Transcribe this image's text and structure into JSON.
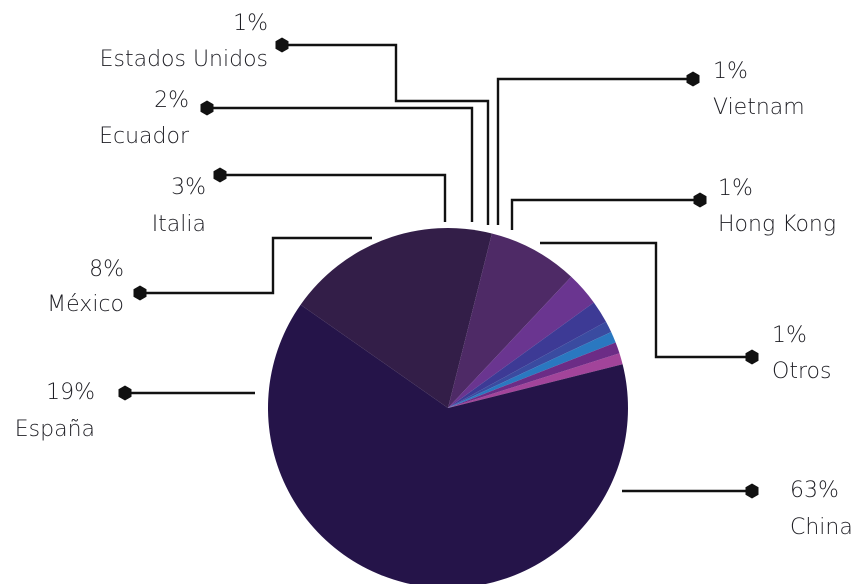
{
  "chart_data": {
    "type": "pie",
    "title": "",
    "slices": [
      {
        "label": "China",
        "value": 63,
        "value_label": "63%",
        "color": "#251449"
      },
      {
        "label": "España",
        "value": 19,
        "value_label": "19%",
        "color": "#331e48"
      },
      {
        "label": "México",
        "value": 8,
        "value_label": "8%",
        "color": "#4e2a66"
      },
      {
        "label": "Italia",
        "value": 3,
        "value_label": "3%",
        "color": "#6a3590"
      },
      {
        "label": "Ecuador",
        "value": 2,
        "value_label": "2%",
        "color": "#3d3a95"
      },
      {
        "label": "Estados Unidos",
        "value": 1,
        "value_label": "1%",
        "color": "#3a4ba0"
      },
      {
        "label": "Vietnam",
        "value": 1,
        "value_label": "1%",
        "color": "#2a78c0"
      },
      {
        "label": "Hong Kong",
        "value": 1,
        "value_label": "1%",
        "color": "#6c2c86"
      },
      {
        "label": "Otros",
        "value": 1,
        "value_label": "1%",
        "color": "#a2449a"
      }
    ]
  }
}
